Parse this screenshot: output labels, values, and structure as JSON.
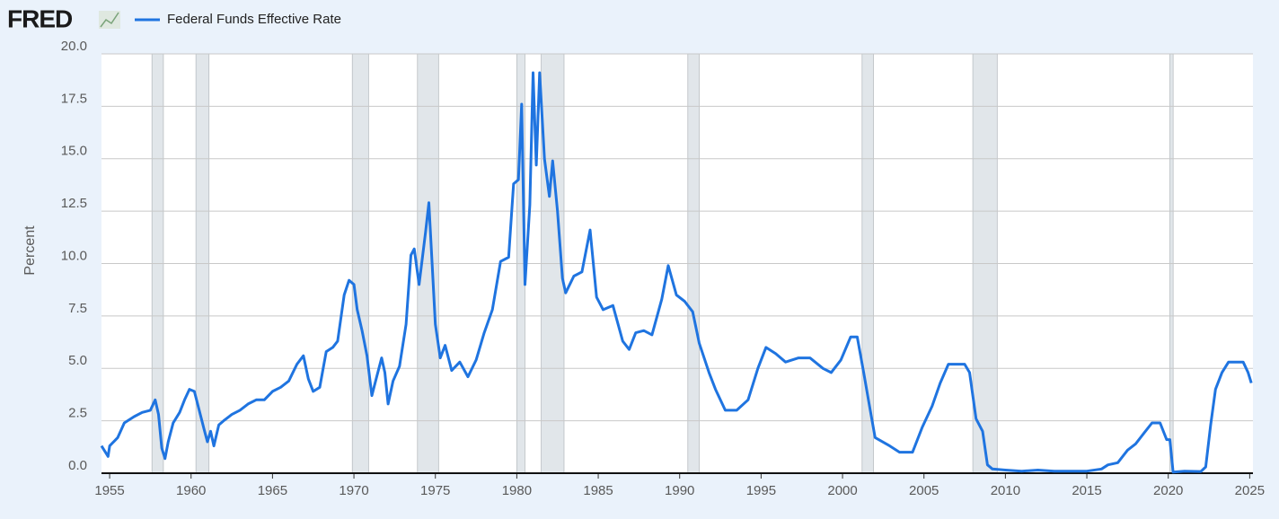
{
  "chart_data": {
    "type": "line",
    "brand": "FRED",
    "y_label": "Percent",
    "xlim": [
      1954.5,
      2025.2
    ],
    "ylim": [
      0,
      20
    ],
    "xticks": [
      1955,
      1960,
      1965,
      1970,
      1975,
      1980,
      1985,
      1990,
      1995,
      2000,
      2005,
      2010,
      2015,
      2020,
      2025
    ],
    "yticks": [
      {
        "value": 0,
        "label": "0.0"
      },
      {
        "value": 2.5,
        "label": "2.5"
      },
      {
        "value": 5,
        "label": "5.0"
      },
      {
        "value": 7.5,
        "label": "7.5"
      },
      {
        "value": 10,
        "label": "10.0"
      },
      {
        "value": 12.5,
        "label": "12.5"
      },
      {
        "value": 15,
        "label": "15.0"
      },
      {
        "value": 17.5,
        "label": "17.5"
      },
      {
        "value": 20,
        "label": "20.0"
      }
    ],
    "grid": true,
    "recession_color": "#e1e6ea",
    "recessions": [
      [
        1957.6,
        1958.3
      ],
      [
        1960.3,
        1961.1
      ],
      [
        1969.9,
        1970.9
      ],
      [
        1973.9,
        1975.2
      ],
      [
        1980.0,
        1980.5
      ],
      [
        1981.5,
        1982.9
      ],
      [
        1990.5,
        1991.2
      ],
      [
        2001.2,
        2001.9
      ],
      [
        2008.0,
        2009.5
      ],
      [
        2020.1,
        2020.3
      ]
    ],
    "x": [
      1954.5,
      1954.9,
      1955.0,
      1955.5,
      1955.9,
      1956.5,
      1957.0,
      1957.5,
      1957.8,
      1958.0,
      1958.2,
      1958.4,
      1958.6,
      1958.9,
      1959.3,
      1959.6,
      1959.9,
      1960.2,
      1960.5,
      1960.8,
      1961.0,
      1961.2,
      1961.4,
      1961.7,
      1962.0,
      1962.5,
      1963.0,
      1963.5,
      1964.0,
      1964.5,
      1965.0,
      1965.5,
      1966.0,
      1966.5,
      1966.9,
      1967.2,
      1967.5,
      1967.9,
      1968.3,
      1968.7,
      1969.0,
      1969.4,
      1969.7,
      1970.0,
      1970.2,
      1970.5,
      1970.8,
      1971.1,
      1971.4,
      1971.7,
      1971.9,
      1972.1,
      1972.4,
      1972.8,
      1973.2,
      1973.5,
      1973.7,
      1974.0,
      1974.4,
      1974.6,
      1974.8,
      1975.0,
      1975.3,
      1975.6,
      1976.0,
      1976.5,
      1977.0,
      1977.5,
      1978.0,
      1978.5,
      1979.0,
      1979.5,
      1979.8,
      1980.1,
      1980.3,
      1980.5,
      1980.8,
      1981.0,
      1981.2,
      1981.4,
      1981.7,
      1982.0,
      1982.2,
      1982.5,
      1982.8,
      1983.0,
      1983.5,
      1984.0,
      1984.5,
      1984.9,
      1985.3,
      1985.9,
      1986.5,
      1986.9,
      1987.3,
      1987.8,
      1988.3,
      1988.9,
      1989.3,
      1989.8,
      1990.3,
      1990.8,
      1991.2,
      1991.8,
      1992.2,
      1992.8,
      1993.5,
      1994.2,
      1994.8,
      1995.3,
      1995.9,
      1996.5,
      1997.3,
      1998.0,
      1998.8,
      1999.3,
      1999.9,
      2000.5,
      2000.9,
      2001.3,
      2001.7,
      2002.0,
      2002.9,
      2003.5,
      2004.3,
      2004.9,
      2005.5,
      2006.0,
      2006.5,
      2007.5,
      2007.8,
      2008.2,
      2008.6,
      2008.9,
      2009.2,
      2010.0,
      2011.0,
      2012.0,
      2013.0,
      2014.0,
      2015.0,
      2015.9,
      2016.3,
      2016.9,
      2017.5,
      2018.0,
      2018.5,
      2019.0,
      2019.5,
      2019.9,
      2020.1,
      2020.3,
      2021.0,
      2022.0,
      2022.3,
      2022.6,
      2022.9,
      2023.3,
      2023.7,
      2024.6,
      2024.9,
      2025.1
    ],
    "series": [
      {
        "name": "Federal Funds Effective Rate",
        "color": "#1f74e0",
        "values": [
          1.3,
          0.8,
          1.3,
          1.7,
          2.4,
          2.7,
          2.9,
          3.0,
          3.5,
          2.8,
          1.2,
          0.7,
          1.5,
          2.4,
          2.9,
          3.5,
          4.0,
          3.9,
          3.0,
          2.1,
          1.5,
          2.0,
          1.3,
          2.3,
          2.5,
          2.8,
          3.0,
          3.3,
          3.5,
          3.5,
          3.9,
          4.1,
          4.4,
          5.2,
          5.6,
          4.5,
          3.9,
          4.1,
          5.8,
          6.0,
          6.3,
          8.5,
          9.2,
          9.0,
          7.8,
          6.8,
          5.6,
          3.7,
          4.6,
          5.5,
          4.8,
          3.3,
          4.4,
          5.1,
          7.1,
          10.4,
          10.7,
          9.0,
          11.5,
          12.9,
          10.0,
          7.1,
          5.5,
          6.1,
          4.9,
          5.3,
          4.6,
          5.4,
          6.7,
          7.8,
          10.1,
          10.3,
          13.8,
          14.0,
          17.6,
          9.0,
          12.8,
          19.1,
          14.7,
          19.1,
          15.0,
          13.2,
          14.9,
          12.5,
          9.3,
          8.6,
          9.4,
          9.6,
          11.6,
          8.4,
          7.8,
          8.0,
          6.3,
          5.9,
          6.7,
          6.8,
          6.6,
          8.3,
          9.9,
          8.5,
          8.2,
          7.7,
          6.2,
          4.8,
          4.0,
          3.0,
          3.0,
          3.5,
          5.0,
          6.0,
          5.7,
          5.3,
          5.5,
          5.5,
          5.0,
          4.8,
          5.4,
          6.5,
          6.5,
          4.8,
          3.0,
          1.7,
          1.3,
          1.0,
          1.0,
          2.2,
          3.2,
          4.3,
          5.2,
          5.2,
          4.8,
          2.6,
          2.0,
          0.4,
          0.2,
          0.15,
          0.1,
          0.15,
          0.1,
          0.1,
          0.1,
          0.2,
          0.4,
          0.5,
          1.1,
          1.4,
          1.9,
          2.4,
          2.4,
          1.6,
          1.6,
          0.05,
          0.1,
          0.08,
          0.3,
          2.3,
          4.0,
          4.8,
          5.3,
          5.3,
          4.8,
          4.3
        ]
      }
    ]
  }
}
